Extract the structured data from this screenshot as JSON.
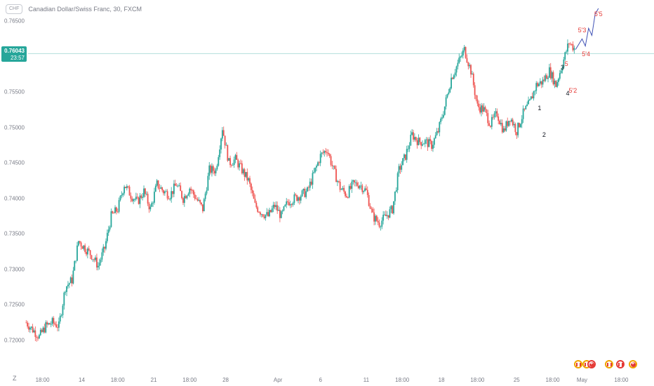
{
  "header": {
    "currency_badge": "CHF",
    "title": "Canadian Dollar/Swiss Franc, 30, FXCM"
  },
  "last_price": {
    "value": "0.76043",
    "countdown": "23:57",
    "level": 0.76043,
    "line_color": "#26a69a"
  },
  "axis_corner": "Z",
  "colors": {
    "up": "#26a69a",
    "down": "#ef5350",
    "projection": "#3f51b5",
    "wave_black": "#131722",
    "wave_red": "#e53935"
  },
  "chart_data": {
    "type": "line",
    "title": "Canadian Dollar/Swiss Franc, 30, FXCM",
    "xlabel": "",
    "ylabel": "",
    "ylim": [
      0.7185,
      0.767
    ],
    "y_ticks": [
      "0.76500",
      "0.76000",
      "0.75500",
      "0.75000",
      "0.74500",
      "0.74000",
      "0.73500",
      "0.73000",
      "0.72500",
      "0.72000"
    ],
    "y_tick_values": [
      0.765,
      0.76,
      0.755,
      0.75,
      0.745,
      0.74,
      0.735,
      0.73,
      0.725,
      0.72
    ],
    "x_ticks": [
      "18:00",
      "14",
      "18:00",
      "21",
      "18:00",
      "28",
      "Apr",
      "6",
      "11",
      "18:00",
      "18",
      "18:00",
      "25",
      "18:00",
      "May",
      "18:00"
    ],
    "x_tick_positions": [
      0.065,
      0.125,
      0.18,
      0.235,
      0.29,
      0.345,
      0.425,
      0.49,
      0.56,
      0.615,
      0.675,
      0.73,
      0.79,
      0.845,
      0.89,
      0.95
    ],
    "x_range": [
      0,
      1
    ],
    "series": [
      {
        "name": "",
        "style": "candles",
        "x": [
          0.04,
          0.05,
          0.06,
          0.07,
          0.08,
          0.09,
          0.1,
          0.11,
          0.12,
          0.13,
          0.14,
          0.15,
          0.16,
          0.17,
          0.18,
          0.19,
          0.2,
          0.21,
          0.22,
          0.23,
          0.24,
          0.25,
          0.26,
          0.27,
          0.28,
          0.29,
          0.3,
          0.31,
          0.32,
          0.33,
          0.34,
          0.35,
          0.36,
          0.37,
          0.38,
          0.39,
          0.4,
          0.41,
          0.42,
          0.43,
          0.44,
          0.45,
          0.46,
          0.47,
          0.48,
          0.49,
          0.5,
          0.51,
          0.52,
          0.53,
          0.54,
          0.55,
          0.56,
          0.57,
          0.58,
          0.59,
          0.6,
          0.61,
          0.62,
          0.63,
          0.64,
          0.65,
          0.66,
          0.67,
          0.68,
          0.69,
          0.7,
          0.71,
          0.72,
          0.73,
          0.74,
          0.75,
          0.76,
          0.77,
          0.78,
          0.79,
          0.8,
          0.81,
          0.82,
          0.83,
          0.84,
          0.85,
          0.86,
          0.87,
          0.88
        ],
        "values": [
          0.7225,
          0.7215,
          0.7205,
          0.722,
          0.7225,
          0.722,
          0.7275,
          0.7285,
          0.734,
          0.733,
          0.732,
          0.7305,
          0.733,
          0.7375,
          0.7385,
          0.742,
          0.7405,
          0.7395,
          0.741,
          0.7385,
          0.742,
          0.741,
          0.7405,
          0.742,
          0.74,
          0.7415,
          0.74,
          0.7385,
          0.744,
          0.744,
          0.75,
          0.745,
          0.7455,
          0.744,
          0.7425,
          0.739,
          0.738,
          0.7375,
          0.739,
          0.7375,
          0.7395,
          0.74,
          0.7405,
          0.741,
          0.7435,
          0.746,
          0.747,
          0.744,
          0.7415,
          0.7405,
          0.742,
          0.742,
          0.741,
          0.7375,
          0.7365,
          0.7375,
          0.7385,
          0.744,
          0.746,
          0.749,
          0.748,
          0.748,
          0.7475,
          0.7495,
          0.753,
          0.757,
          0.759,
          0.761,
          0.758,
          0.753,
          0.7525,
          0.7505,
          0.752,
          0.7495,
          0.7515,
          0.7495,
          0.752,
          0.7535,
          0.756,
          0.7565,
          0.758,
          0.756,
          0.759,
          0.762,
          0.761
        ]
      },
      {
        "name": "",
        "style": "projection",
        "x": [
          0.88,
          0.89,
          0.895,
          0.9,
          0.905,
          0.91,
          0.915
        ],
        "values": [
          0.761,
          0.7625,
          0.7615,
          0.764,
          0.763,
          0.766,
          0.7668
        ]
      }
    ],
    "annotations": [
      {
        "text": "1",
        "x": 0.825,
        "y": 0.7527,
        "color": "black"
      },
      {
        "text": "2",
        "x": 0.832,
        "y": 0.749,
        "color": "black"
      },
      {
        "text": "3",
        "x": 0.86,
        "y": 0.7585,
        "color": "black"
      },
      {
        "text": "4",
        "x": 0.868,
        "y": 0.7548,
        "color": "black"
      },
      {
        "text": "5",
        "x": 0.866,
        "y": 0.759,
        "color": "red"
      },
      {
        "text": "5'2",
        "x": 0.876,
        "y": 0.7552,
        "color": "red"
      },
      {
        "text": "5'3",
        "x": 0.89,
        "y": 0.7637,
        "color": "red"
      },
      {
        "text": "5'4",
        "x": 0.896,
        "y": 0.7604,
        "color": "red"
      },
      {
        "text": "5'5",
        "x": 0.915,
        "y": 0.766,
        "color": "red"
      }
    ]
  },
  "event_badges": [
    {
      "icon": "flag-icon"
    },
    {
      "icon": "flag-icon"
    },
    {
      "icon": "swiss-cross-icon"
    },
    {
      "icon": "flag-icon"
    },
    {
      "icon": "flag-icon"
    },
    {
      "icon": "swiss-cross-icon"
    }
  ]
}
